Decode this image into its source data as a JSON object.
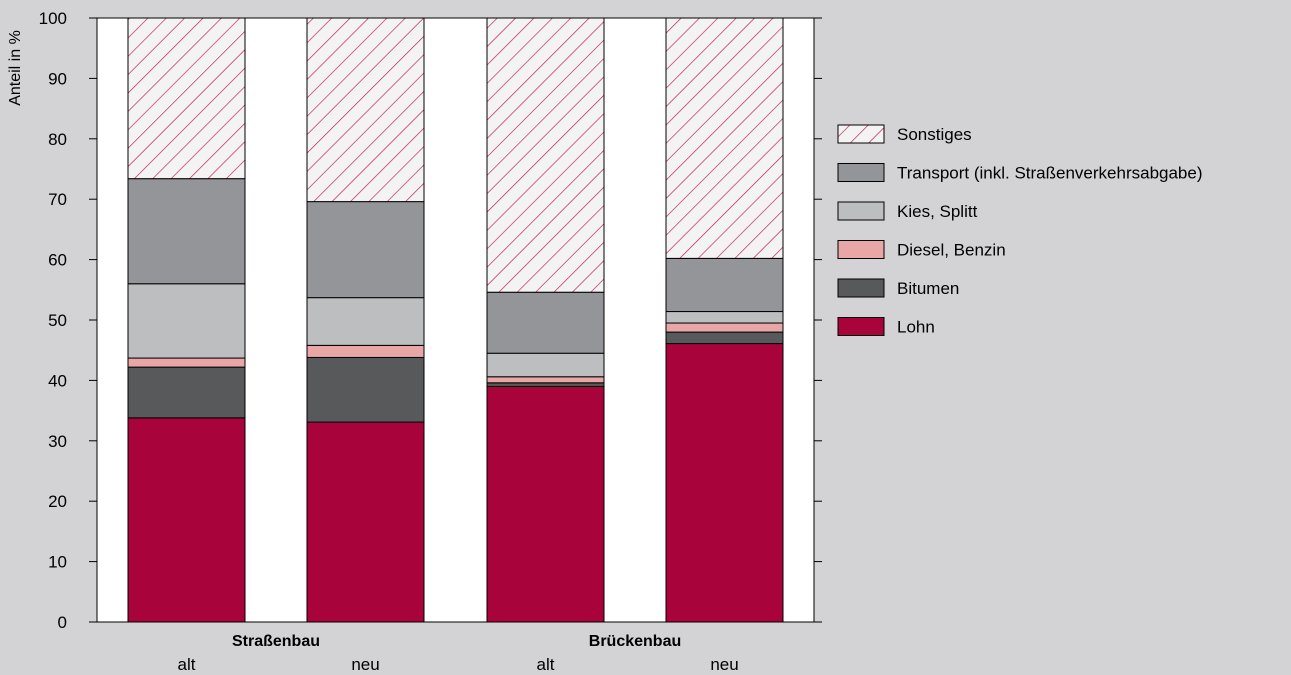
{
  "chart_data": {
    "type": "bar",
    "stacked": true,
    "ylabel": "Anteil in %",
    "ylim": [
      0,
      100
    ],
    "yticks": [
      0,
      10,
      20,
      30,
      40,
      50,
      60,
      70,
      80,
      90,
      100
    ],
    "groups": [
      "Straßenbau",
      "Brückenbau"
    ],
    "bars": [
      {
        "group": "Straßenbau",
        "label": "alt"
      },
      {
        "group": "Straßenbau",
        "label": "neu"
      },
      {
        "group": "Brückenbau",
        "label": "alt"
      },
      {
        "group": "Brückenbau",
        "label": "neu"
      }
    ],
    "series": [
      {
        "name": "Lohn",
        "color": "#a8033b",
        "values": [
          33.8,
          33.1,
          39.0,
          46.1
        ]
      },
      {
        "name": "Bitumen",
        "color": "#58595b",
        "values": [
          8.4,
          10.7,
          0.6,
          1.9
        ]
      },
      {
        "name": "Diesel, Benzin",
        "color": "#e8a6a6",
        "values": [
          1.5,
          2.0,
          1.0,
          1.5
        ]
      },
      {
        "name": "Kies, Splitt",
        "color": "#bdbec0",
        "values": [
          12.3,
          7.9,
          3.9,
          1.9
        ]
      },
      {
        "name": "Transport (inkl. Straßenverkehrsabgabe)",
        "color": "#939598",
        "values": [
          17.4,
          15.9,
          10.1,
          8.8
        ]
      },
      {
        "name": "Sonstiges",
        "color": "hatch",
        "values": [
          26.6,
          30.4,
          45.4,
          39.8
        ]
      }
    ],
    "legend_order": [
      "Sonstiges",
      "Transport (inkl. Straßenverkehrsabgabe)",
      "Kies, Splitt",
      "Diesel, Benzin",
      "Bitumen",
      "Lohn"
    ],
    "legend_position": "right",
    "grid": false
  }
}
